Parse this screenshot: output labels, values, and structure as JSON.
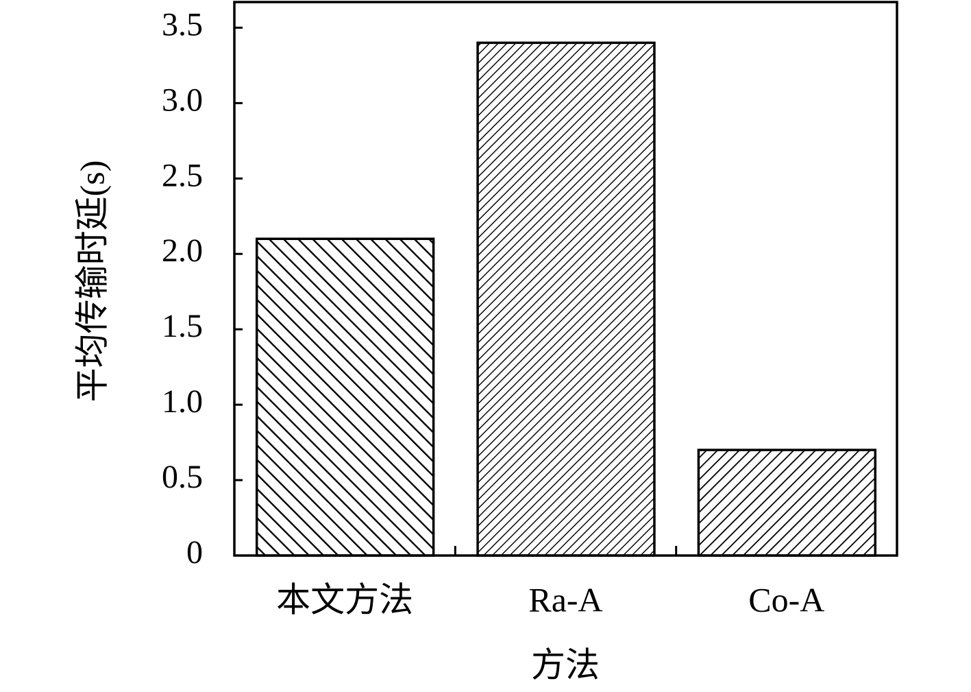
{
  "chart_data": {
    "type": "bar",
    "x_label": "方法",
    "y_label": "平均传输时延(s)",
    "categories": [
      "本文方法",
      "Ra-A",
      "Co-A"
    ],
    "values": [
      2.1,
      3.4,
      0.7
    ],
    "hatches": [
      "///",
      "\\\\\\\\\\",
      "\\\\\\\\"
    ],
    "color": "#000000",
    "ylim": [
      0,
      3.67
    ],
    "yticks": [
      0,
      0.5,
      {
        "value": 1,
        "label": "1.0"
      },
      1.5,
      {
        "value": 2,
        "label": "2.0"
      },
      2.5,
      {
        "value": 3,
        "label": "3.0"
      },
      3.5
    ],
    "grid": false
  }
}
